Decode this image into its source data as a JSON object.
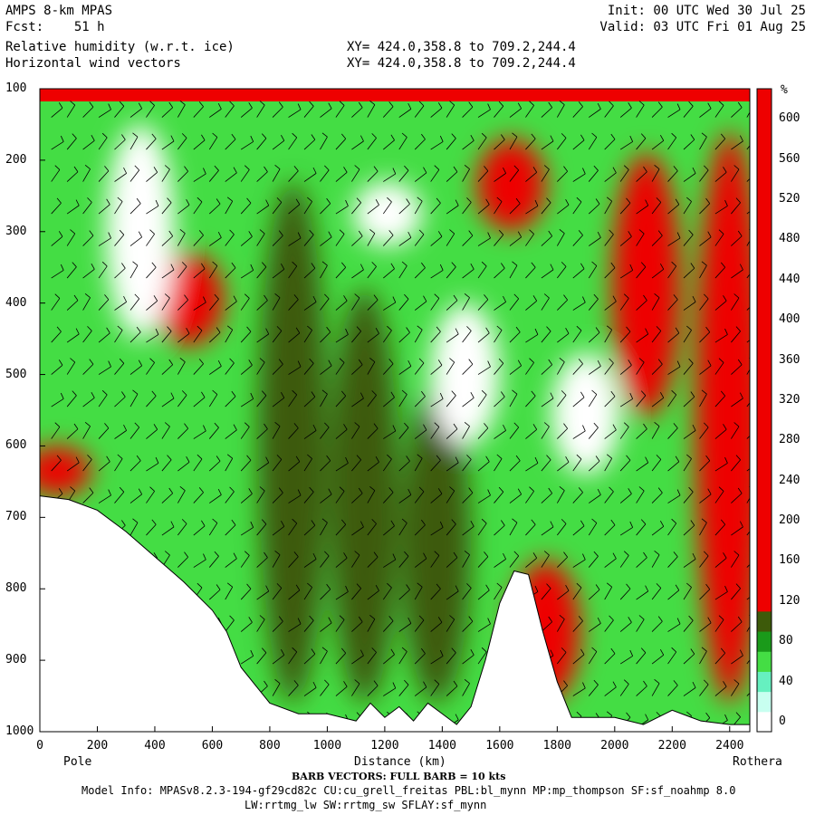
{
  "header": {
    "line1": "AMPS 8-km MPAS",
    "line2": "Fcst:    51 h",
    "line3": "Relative humidity (w.r.t. ice)",
    "line4": "Horizontal wind vectors",
    "init": "Init: 00 UTC Wed 30 Jul 25",
    "valid": "Valid: 03 UTC Fri 01 Aug 25",
    "xy1": "XY= 424.0,358.8 to 709.2,244.4",
    "xy2": "XY= 424.0,358.8 to 709.2,244.4"
  },
  "chart_data": {
    "type": "heatmap",
    "title": "Relative humidity (w.r.t. ice)",
    "xlabel": "Distance (km)",
    "x_left_label": "Pole",
    "x_right_label": "Rothera",
    "xlim": [
      0,
      2470
    ],
    "x_ticks": [
      "0",
      "200",
      "400",
      "600",
      "800",
      "1000",
      "1200",
      "1400",
      "1600",
      "1800",
      "2000",
      "2200",
      "2400"
    ],
    "ylim": [
      1000,
      100
    ],
    "y_ticks": [
      "100",
      "200",
      "300",
      "400",
      "500",
      "600",
      "700",
      "800",
      "900",
      "1000"
    ],
    "colorbar": {
      "unit": "%",
      "levels": [
        "0",
        "40",
        "80",
        "120",
        "160",
        "200",
        "240",
        "280",
        "320",
        "360",
        "400",
        "440",
        "480",
        "520",
        "560",
        "600"
      ],
      "bands": [
        {
          "from": 0,
          "to": 20,
          "color": "#ffffff"
        },
        {
          "from": 20,
          "to": 40,
          "color": "#c8fff0"
        },
        {
          "from": 40,
          "to": 60,
          "color": "#66f0c0"
        },
        {
          "from": 60,
          "to": 80,
          "color": "#44dd44"
        },
        {
          "from": 80,
          "to": 100,
          "color": "#1a9a1a"
        },
        {
          "from": 100,
          "to": 120,
          "color": "#3d5a0a"
        },
        {
          "from": 120,
          "to": 640,
          "color": "#ee0000"
        }
      ]
    },
    "terrain_profile": [
      [
        0,
        670
      ],
      [
        100,
        675
      ],
      [
        200,
        690
      ],
      [
        300,
        720
      ],
      [
        400,
        755
      ],
      [
        500,
        790
      ],
      [
        600,
        830
      ],
      [
        650,
        860
      ],
      [
        700,
        910
      ],
      [
        800,
        960
      ],
      [
        900,
        975
      ],
      [
        1000,
        975
      ],
      [
        1100,
        985
      ],
      [
        1150,
        960
      ],
      [
        1200,
        980
      ],
      [
        1250,
        965
      ],
      [
        1300,
        985
      ],
      [
        1350,
        960
      ],
      [
        1400,
        975
      ],
      [
        1450,
        990
      ],
      [
        1500,
        965
      ],
      [
        1550,
        900
      ],
      [
        1600,
        820
      ],
      [
        1650,
        775
      ],
      [
        1700,
        780
      ],
      [
        1750,
        860
      ],
      [
        1800,
        930
      ],
      [
        1850,
        980
      ],
      [
        1900,
        980
      ],
      [
        2000,
        980
      ],
      [
        2100,
        990
      ],
      [
        2200,
        970
      ],
      [
        2300,
        985
      ],
      [
        2400,
        990
      ],
      [
        2470,
        990
      ]
    ],
    "rh_blobs": [
      {
        "x": 880,
        "p_top": 230,
        "p_bot": 960,
        "value": 110
      },
      {
        "x": 1130,
        "p_top": 380,
        "p_bot": 960,
        "value": 110
      },
      {
        "x": 1380,
        "p_top": 520,
        "p_bot": 960,
        "value": 110
      },
      {
        "x": 1640,
        "p_top": 170,
        "p_bot": 300,
        "value": 300
      },
      {
        "x": 2110,
        "p_top": 190,
        "p_bot": 560,
        "value": 300
      },
      {
        "x": 2400,
        "p_top": 160,
        "p_bot": 960,
        "value": 300
      },
      {
        "x": 520,
        "p_top": 330,
        "p_bot": 460,
        "value": 300
      },
      {
        "x": 1760,
        "p_top": 760,
        "p_bot": 960,
        "value": 300
      },
      {
        "x": 60,
        "p_top": 600,
        "p_bot": 670,
        "value": 300
      },
      {
        "x": 350,
        "p_top": 150,
        "p_bot": 450,
        "value": 10
      },
      {
        "x": 1210,
        "p_top": 230,
        "p_bot": 320,
        "value": 10
      },
      {
        "x": 1480,
        "p_top": 400,
        "p_bot": 600,
        "value": 10
      },
      {
        "x": 1900,
        "p_top": 470,
        "p_bot": 640,
        "value": 10
      }
    ],
    "wind_vectors_note": "BARB VECTORS:  FULL BARB = 10 kts"
  },
  "footer": {
    "barb_note": "BARB VECTORS:  FULL BARB = 10 kts",
    "model_info_1": "Model Info: MPASv8.2.3-194-gf29cd82c CU:cu_grell_freitas PBL:bl_mynn MP:mp_thompson SF:sf_noahmp 8.0",
    "model_info_2": "LW:rrtmg_lw SW:rrtmg_sw SFLAY:sf_mynn"
  }
}
